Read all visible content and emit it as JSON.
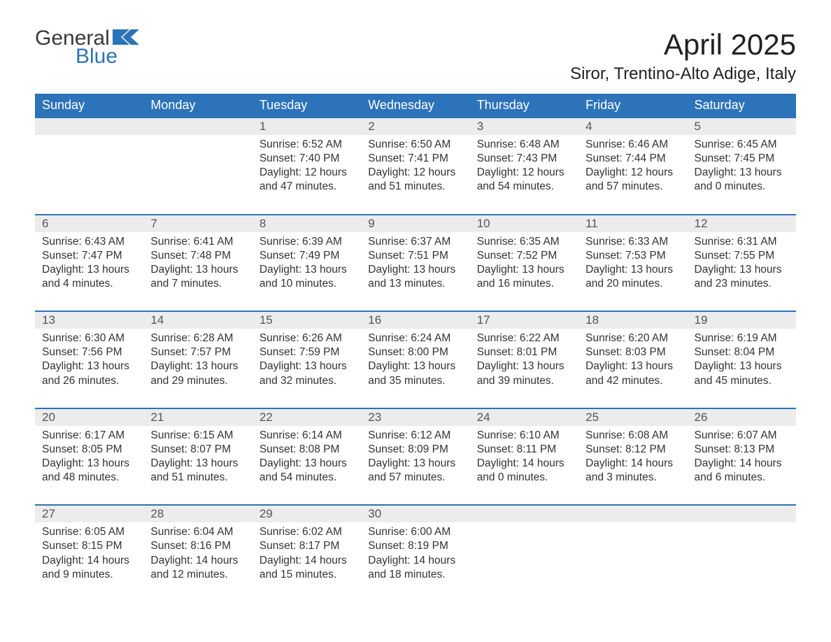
{
  "logo": {
    "word1": "General",
    "word2": "Blue"
  },
  "title": "April 2025",
  "location": "Siror, Trentino-Alto Adige, Italy",
  "colors": {
    "header_bg": "#2d73b9",
    "header_text": "#ffffff",
    "daynum_bg": "#ececec",
    "daynum_border": "#2d73b9",
    "body_text": "#333333",
    "logo_blue": "#2d73b9",
    "logo_gray": "#3a3a3a",
    "page_bg": "#ffffff"
  },
  "typography": {
    "title_fontsize": 42,
    "location_fontsize": 24,
    "dow_fontsize": 18,
    "daynum_fontsize": 17,
    "body_fontsize": 15.5,
    "font_family": "Segoe UI"
  },
  "days_of_week": [
    "Sunday",
    "Monday",
    "Tuesday",
    "Wednesday",
    "Thursday",
    "Friday",
    "Saturday"
  ],
  "weeks": [
    [
      null,
      null,
      {
        "n": "1",
        "sunrise": "Sunrise: 6:52 AM",
        "sunset": "Sunset: 7:40 PM",
        "d1": "Daylight: 12 hours",
        "d2": "and 47 minutes."
      },
      {
        "n": "2",
        "sunrise": "Sunrise: 6:50 AM",
        "sunset": "Sunset: 7:41 PM",
        "d1": "Daylight: 12 hours",
        "d2": "and 51 minutes."
      },
      {
        "n": "3",
        "sunrise": "Sunrise: 6:48 AM",
        "sunset": "Sunset: 7:43 PM",
        "d1": "Daylight: 12 hours",
        "d2": "and 54 minutes."
      },
      {
        "n": "4",
        "sunrise": "Sunrise: 6:46 AM",
        "sunset": "Sunset: 7:44 PM",
        "d1": "Daylight: 12 hours",
        "d2": "and 57 minutes."
      },
      {
        "n": "5",
        "sunrise": "Sunrise: 6:45 AM",
        "sunset": "Sunset: 7:45 PM",
        "d1": "Daylight: 13 hours",
        "d2": "and 0 minutes."
      }
    ],
    [
      {
        "n": "6",
        "sunrise": "Sunrise: 6:43 AM",
        "sunset": "Sunset: 7:47 PM",
        "d1": "Daylight: 13 hours",
        "d2": "and 4 minutes."
      },
      {
        "n": "7",
        "sunrise": "Sunrise: 6:41 AM",
        "sunset": "Sunset: 7:48 PM",
        "d1": "Daylight: 13 hours",
        "d2": "and 7 minutes."
      },
      {
        "n": "8",
        "sunrise": "Sunrise: 6:39 AM",
        "sunset": "Sunset: 7:49 PM",
        "d1": "Daylight: 13 hours",
        "d2": "and 10 minutes."
      },
      {
        "n": "9",
        "sunrise": "Sunrise: 6:37 AM",
        "sunset": "Sunset: 7:51 PM",
        "d1": "Daylight: 13 hours",
        "d2": "and 13 minutes."
      },
      {
        "n": "10",
        "sunrise": "Sunrise: 6:35 AM",
        "sunset": "Sunset: 7:52 PM",
        "d1": "Daylight: 13 hours",
        "d2": "and 16 minutes."
      },
      {
        "n": "11",
        "sunrise": "Sunrise: 6:33 AM",
        "sunset": "Sunset: 7:53 PM",
        "d1": "Daylight: 13 hours",
        "d2": "and 20 minutes."
      },
      {
        "n": "12",
        "sunrise": "Sunrise: 6:31 AM",
        "sunset": "Sunset: 7:55 PM",
        "d1": "Daylight: 13 hours",
        "d2": "and 23 minutes."
      }
    ],
    [
      {
        "n": "13",
        "sunrise": "Sunrise: 6:30 AM",
        "sunset": "Sunset: 7:56 PM",
        "d1": "Daylight: 13 hours",
        "d2": "and 26 minutes."
      },
      {
        "n": "14",
        "sunrise": "Sunrise: 6:28 AM",
        "sunset": "Sunset: 7:57 PM",
        "d1": "Daylight: 13 hours",
        "d2": "and 29 minutes."
      },
      {
        "n": "15",
        "sunrise": "Sunrise: 6:26 AM",
        "sunset": "Sunset: 7:59 PM",
        "d1": "Daylight: 13 hours",
        "d2": "and 32 minutes."
      },
      {
        "n": "16",
        "sunrise": "Sunrise: 6:24 AM",
        "sunset": "Sunset: 8:00 PM",
        "d1": "Daylight: 13 hours",
        "d2": "and 35 minutes."
      },
      {
        "n": "17",
        "sunrise": "Sunrise: 6:22 AM",
        "sunset": "Sunset: 8:01 PM",
        "d1": "Daylight: 13 hours",
        "d2": "and 39 minutes."
      },
      {
        "n": "18",
        "sunrise": "Sunrise: 6:20 AM",
        "sunset": "Sunset: 8:03 PM",
        "d1": "Daylight: 13 hours",
        "d2": "and 42 minutes."
      },
      {
        "n": "19",
        "sunrise": "Sunrise: 6:19 AM",
        "sunset": "Sunset: 8:04 PM",
        "d1": "Daylight: 13 hours",
        "d2": "and 45 minutes."
      }
    ],
    [
      {
        "n": "20",
        "sunrise": "Sunrise: 6:17 AM",
        "sunset": "Sunset: 8:05 PM",
        "d1": "Daylight: 13 hours",
        "d2": "and 48 minutes."
      },
      {
        "n": "21",
        "sunrise": "Sunrise: 6:15 AM",
        "sunset": "Sunset: 8:07 PM",
        "d1": "Daylight: 13 hours",
        "d2": "and 51 minutes."
      },
      {
        "n": "22",
        "sunrise": "Sunrise: 6:14 AM",
        "sunset": "Sunset: 8:08 PM",
        "d1": "Daylight: 13 hours",
        "d2": "and 54 minutes."
      },
      {
        "n": "23",
        "sunrise": "Sunrise: 6:12 AM",
        "sunset": "Sunset: 8:09 PM",
        "d1": "Daylight: 13 hours",
        "d2": "and 57 minutes."
      },
      {
        "n": "24",
        "sunrise": "Sunrise: 6:10 AM",
        "sunset": "Sunset: 8:11 PM",
        "d1": "Daylight: 14 hours",
        "d2": "and 0 minutes."
      },
      {
        "n": "25",
        "sunrise": "Sunrise: 6:08 AM",
        "sunset": "Sunset: 8:12 PM",
        "d1": "Daylight: 14 hours",
        "d2": "and 3 minutes."
      },
      {
        "n": "26",
        "sunrise": "Sunrise: 6:07 AM",
        "sunset": "Sunset: 8:13 PM",
        "d1": "Daylight: 14 hours",
        "d2": "and 6 minutes."
      }
    ],
    [
      {
        "n": "27",
        "sunrise": "Sunrise: 6:05 AM",
        "sunset": "Sunset: 8:15 PM",
        "d1": "Daylight: 14 hours",
        "d2": "and 9 minutes."
      },
      {
        "n": "28",
        "sunrise": "Sunrise: 6:04 AM",
        "sunset": "Sunset: 8:16 PM",
        "d1": "Daylight: 14 hours",
        "d2": "and 12 minutes."
      },
      {
        "n": "29",
        "sunrise": "Sunrise: 6:02 AM",
        "sunset": "Sunset: 8:17 PM",
        "d1": "Daylight: 14 hours",
        "d2": "and 15 minutes."
      },
      {
        "n": "30",
        "sunrise": "Sunrise: 6:00 AM",
        "sunset": "Sunset: 8:19 PM",
        "d1": "Daylight: 14 hours",
        "d2": "and 18 minutes."
      },
      null,
      null,
      null
    ]
  ]
}
